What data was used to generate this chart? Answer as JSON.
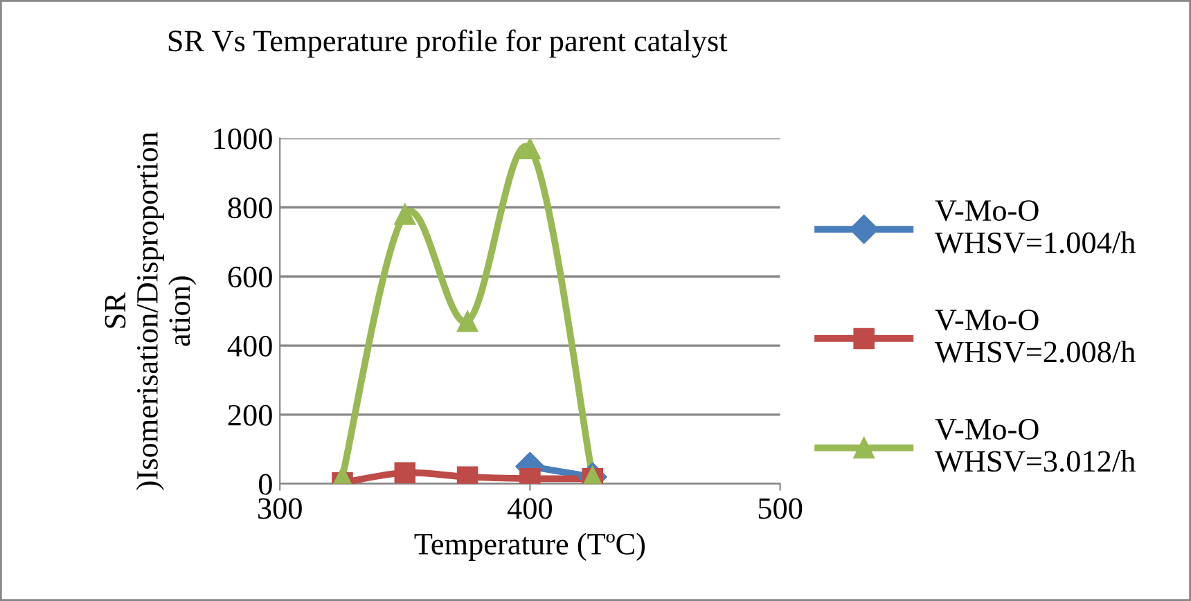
{
  "chart_data": {
    "type": "line",
    "title": "SR Vs Temperature profile for parent catalyst",
    "xlabel": "Temperature (TºC)",
    "ylabel": "SR\n)Isomerisation/Disproportion\nation)",
    "x": [
      325,
      350,
      375,
      400,
      425
    ],
    "xlim": [
      300,
      500
    ],
    "xticks": [
      300,
      400,
      500
    ],
    "ylim": [
      0,
      1000
    ],
    "yticks": [
      0,
      200,
      400,
      600,
      800,
      1000
    ],
    "grid": "y",
    "legend": "right",
    "series": [
      {
        "name": "V-Mo-O\nWHSV=1.004/h",
        "color": "#4a7ebb",
        "marker": "diamond",
        "values": [
          null,
          null,
          null,
          50,
          20
        ]
      },
      {
        "name": "V-Mo-O\nWHSV=2.008/h",
        "color": "#be4b48",
        "marker": "square",
        "values": [
          3,
          32,
          20,
          15,
          15
        ]
      },
      {
        "name": "V-Mo-O\nWHSV=3.012/h",
        "color": "#98b954",
        "marker": "triangle",
        "values": [
          20,
          780,
          470,
          970,
          20
        ]
      }
    ]
  }
}
